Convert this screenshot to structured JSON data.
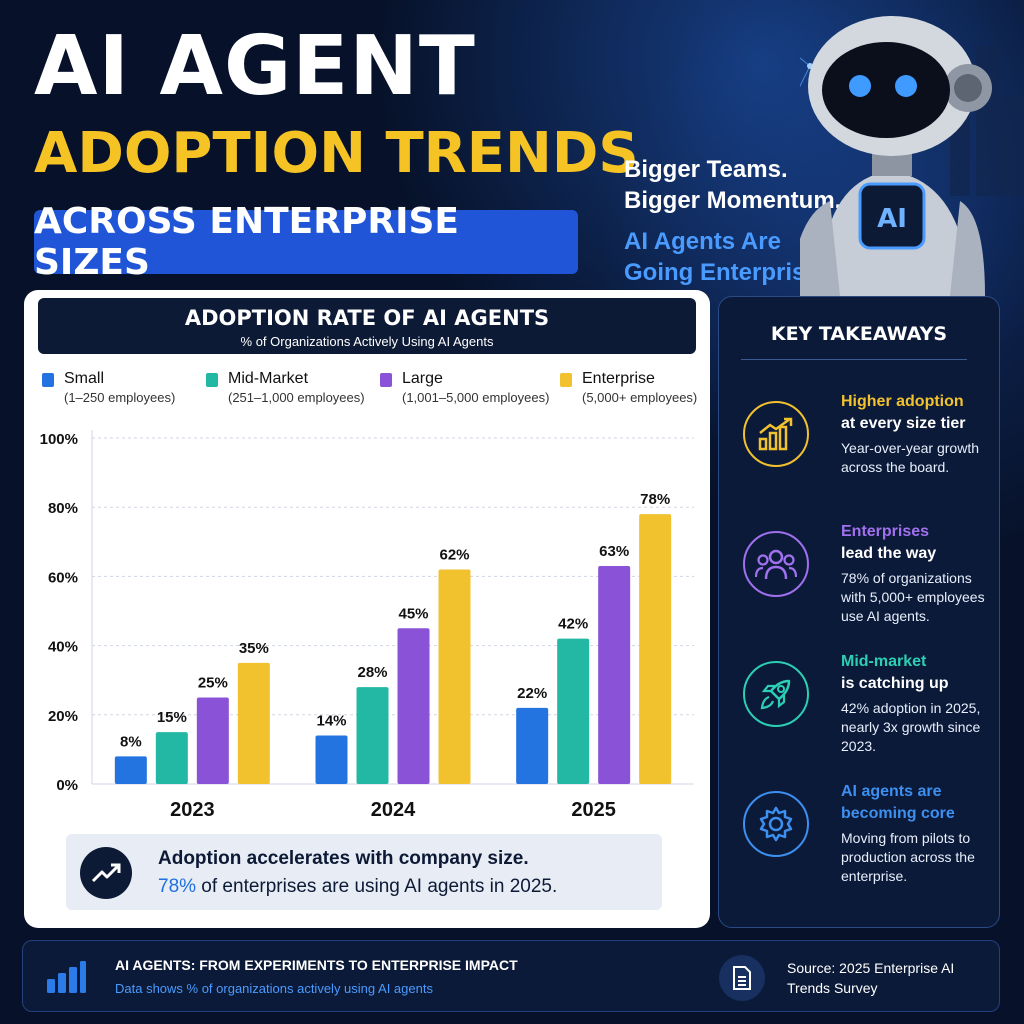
{
  "header": {
    "title_line1": "AI AGENT",
    "title_line2": "ADOPTION TRENDS",
    "title_banner": "ACROSS ENTERPRISE SIZES",
    "tagline": {
      "line1": "Bigger Teams.",
      "line2": "Bigger Momentum.",
      "line3": "AI Agents Are",
      "line4": "Going Enterprise."
    },
    "robot_chest_label": "AI"
  },
  "chart_data": {
    "type": "bar",
    "title": "ADOPTION RATE OF AI AGENTS",
    "subtitle": "% of Organizations Actively Using AI Agents",
    "categories": [
      "2023",
      "2024",
      "2025"
    ],
    "series": [
      {
        "name": "Small",
        "note": "(1–250 employees)",
        "color": "#2374e1",
        "values": [
          8,
          14,
          22
        ]
      },
      {
        "name": "Mid-Market",
        "note": "(251–1,000 employees)",
        "color": "#22b8a4",
        "values": [
          15,
          28,
          42
        ]
      },
      {
        "name": "Large",
        "note": "(1,001–5,000 employees)",
        "color": "#8a52d6",
        "values": [
          25,
          45,
          63
        ]
      },
      {
        "name": "Enterprise",
        "note": "(5,000+ employees)",
        "color": "#f2c12e",
        "values": [
          35,
          62,
          78
        ]
      }
    ],
    "data_labels": [
      [
        "8%",
        "14%",
        "22%"
      ],
      [
        "15%",
        "28%",
        "42%"
      ],
      [
        "25%",
        "45%",
        "63%"
      ],
      [
        "35%",
        "62%",
        "78%"
      ]
    ],
    "ylim": [
      0,
      100
    ],
    "yticks": [
      "0%",
      "20%",
      "40%",
      "60%",
      "80%",
      "100%"
    ],
    "grid": true,
    "legend_position": "top"
  },
  "callout": {
    "line1": "Adoption accelerates with company size.",
    "highlight": "78%",
    "line2_rest": " of enterprises are using AI agents in 2025."
  },
  "takeaways": {
    "title": "KEY TAKEAWAYS",
    "items": [
      {
        "head1": "Higher adoption",
        "head2": "at every size tier",
        "body": "Year-over-year growth across the board.",
        "color": "#f2c12e",
        "icon": "bar-growth-icon"
      },
      {
        "head1": "Enterprises",
        "head2": "lead the way",
        "body": "78% of organizations with 5,000+ employees use AI agents.",
        "color": "#a070ee",
        "icon": "people-group-icon"
      },
      {
        "head1": "Mid-market",
        "head2": "is catching up",
        "body": "42% adoption in 2025, nearly 3x growth since 2023.",
        "color": "#2ccfb4",
        "icon": "rocket-icon"
      },
      {
        "head1": "AI agents are",
        "head2": "becoming core",
        "body": "Moving from pilots to production across the enterprise.",
        "color": "#3d8ff0",
        "icon": "gear-icon"
      }
    ]
  },
  "footer": {
    "title": "AI AGENTS: FROM EXPERIMENTS TO ENTERPRISE IMPACT",
    "subtitle": "Data shows % of organizations actively using AI agents",
    "source": "Source: 2025 Enterprise AI Trends Survey"
  }
}
